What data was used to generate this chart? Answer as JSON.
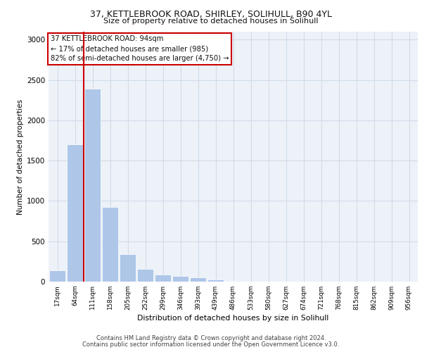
{
  "title_line1": "37, KETTLEBROOK ROAD, SHIRLEY, SOLIHULL, B90 4YL",
  "title_line2": "Size of property relative to detached houses in Solihull",
  "xlabel": "Distribution of detached houses by size in Solihull",
  "ylabel": "Number of detached properties",
  "footer_line1": "Contains HM Land Registry data © Crown copyright and database right 2024.",
  "footer_line2": "Contains public sector information licensed under the Open Government Licence v3.0.",
  "bar_labels": [
    "17sqm",
    "64sqm",
    "111sqm",
    "158sqm",
    "205sqm",
    "252sqm",
    "299sqm",
    "346sqm",
    "393sqm",
    "439sqm",
    "486sqm",
    "533sqm",
    "580sqm",
    "627sqm",
    "674sqm",
    "721sqm",
    "768sqm",
    "815sqm",
    "862sqm",
    "909sqm",
    "956sqm"
  ],
  "bar_values": [
    140,
    1700,
    2390,
    930,
    340,
    160,
    90,
    70,
    50,
    30,
    5,
    0,
    0,
    0,
    0,
    0,
    0,
    0,
    0,
    0,
    0
  ],
  "bar_color": "#aec6e8",
  "property_line_x": 1.5,
  "annotation_text_line1": "37 KETTLEBROOK ROAD: 94sqm",
  "annotation_text_line2": "← 17% of detached houses are smaller (985)",
  "annotation_text_line3": "82% of semi-detached houses are larger (4,750) →",
  "annotation_box_edge_color": "#cc0000",
  "red_line_color": "#cc0000",
  "ylim": [
    0,
    3100
  ],
  "yticks": [
    0,
    500,
    1000,
    1500,
    2000,
    2500,
    3000
  ],
  "grid_color": "#d0dce8",
  "plot_bg_color": "#edf2f8"
}
